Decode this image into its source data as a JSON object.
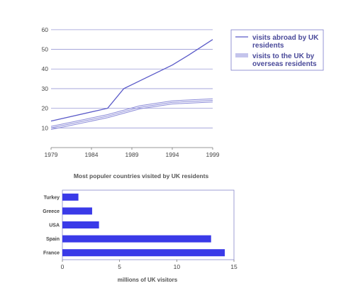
{
  "chart_data": [
    {
      "type": "line",
      "x": [
        1979,
        1986,
        1988,
        1990,
        1994,
        1996,
        1999
      ],
      "x_ticks": [
        "1979",
        "1984",
        "1989",
        "1994",
        "1999"
      ],
      "xlim": [
        1979,
        1999
      ],
      "ylim": [
        0,
        65
      ],
      "y_ticks": [
        "10",
        "20",
        "30",
        "40",
        "50",
        "60"
      ],
      "grid": true,
      "legend": "right",
      "series": [
        {
          "name_lines": [
            "visits abroad by UK",
            "residents"
          ],
          "x": [
            1979,
            1986,
            1988,
            1990,
            1994,
            1996,
            1999
          ],
          "values": [
            13.5,
            20,
            30,
            34,
            42,
            47,
            55
          ],
          "color": "#5a5ac8",
          "style": "single"
        },
        {
          "name_lines": [
            "visits to the UK by",
            "overseas residents"
          ],
          "x": [
            1979,
            1986,
            1990,
            1994,
            1999
          ],
          "values": [
            10,
            16,
            20.5,
            23,
            24
          ],
          "color": "#8a8ad8",
          "style": "triple"
        }
      ]
    },
    {
      "type": "bar",
      "orientation": "horizontal",
      "title": "Most populer countries visited by UK residents",
      "xlabel": "millions of UK visitors",
      "categories": [
        "Turkey",
        "Greece",
        "USA",
        "Spain",
        "France"
      ],
      "values": [
        1.4,
        2.6,
        3.2,
        13,
        14.2
      ],
      "xlim": [
        0,
        15
      ],
      "x_ticks": [
        "0",
        "5",
        "10",
        "15"
      ],
      "bar_color": "#3a3ae8"
    }
  ]
}
